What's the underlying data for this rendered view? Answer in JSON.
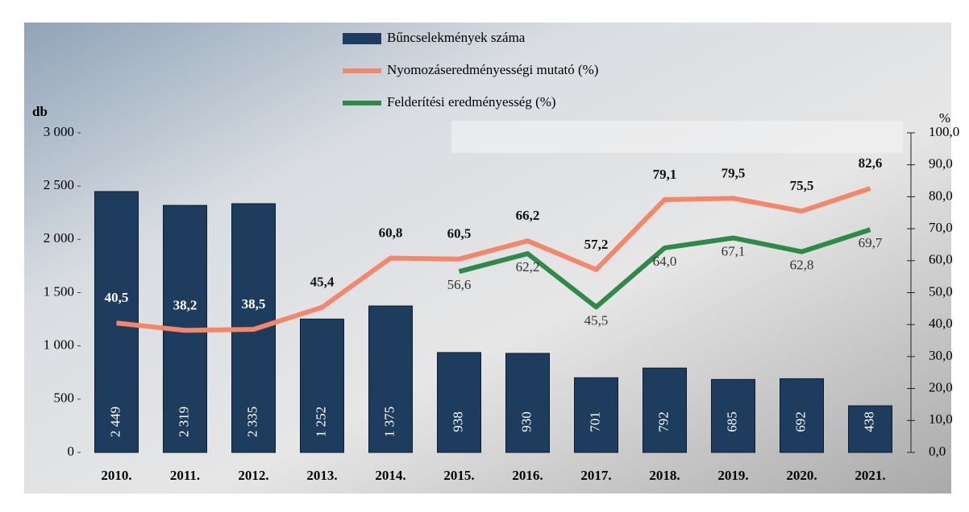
{
  "chart_data": {
    "type": "bar",
    "y_label": "db",
    "y2_label": "%",
    "categories": [
      "2010.",
      "2011.",
      "2012.",
      "2013.",
      "2014.",
      "2015.",
      "2016.",
      "2017.",
      "2018.",
      "2019.",
      "2020.",
      "2021."
    ],
    "series": [
      {
        "name": "Bűncselekmények száma",
        "type": "bar",
        "color": "#1d3c5e",
        "values": [
          2449,
          2319,
          2335,
          1252,
          1375,
          938,
          930,
          701,
          792,
          685,
          692,
          438
        ],
        "value_labels": [
          "2 449",
          "2 319",
          "2 335",
          "1 252",
          "1 375",
          "938",
          "930",
          "701",
          "792",
          "685",
          "692",
          "438"
        ]
      },
      {
        "name": "Nyomozáseredményességi mutató (%)",
        "type": "line",
        "axis": "y2",
        "color": "#f3876b",
        "values": [
          40.5,
          38.2,
          38.5,
          45.4,
          60.8,
          60.5,
          66.2,
          57.2,
          79.1,
          79.5,
          75.5,
          82.6
        ],
        "value_labels": [
          "40,5",
          "38,2",
          "38,5",
          "45,4",
          "60,8",
          "60,5",
          "66,2",
          "57,2",
          "79,1",
          "79,5",
          "75,5",
          "82,6"
        ]
      },
      {
        "name": "Felderítési eredményesség (%)",
        "type": "line",
        "axis": "y2",
        "color": "#2f8a4a",
        "values": [
          null,
          null,
          null,
          null,
          null,
          56.6,
          62.2,
          45.5,
          64.0,
          67.1,
          62.8,
          69.7
        ],
        "value_labels": [
          null,
          null,
          null,
          null,
          null,
          "56,6",
          "62,2",
          "45,5",
          "64,0",
          "67,1",
          "62,8",
          "69,7"
        ]
      }
    ],
    "ylim": [
      0,
      3000
    ],
    "yticks": [
      0,
      500,
      {
        "value": 1000,
        "label": "1 000"
      },
      {
        "value": 1500,
        "label": "1 500"
      },
      {
        "value": 2000,
        "label": "2 000"
      },
      {
        "value": 2500,
        "label": "2 500"
      },
      {
        "value": 3000,
        "label": "3 000"
      }
    ],
    "y2lim": [
      0,
      100
    ],
    "y2ticks": [
      {
        "value": 0,
        "label": "0,0"
      },
      {
        "value": 10,
        "label": "10,0"
      },
      {
        "value": 20,
        "label": "20,0"
      },
      {
        "value": 30,
        "label": "30,0"
      },
      {
        "value": 40,
        "label": "40,0"
      },
      {
        "value": 50,
        "label": "50,0"
      },
      {
        "value": 60,
        "label": "60,0"
      },
      {
        "value": 70,
        "label": "70,0"
      },
      {
        "value": 80,
        "label": "80,0"
      },
      {
        "value": 90,
        "label": "90,0"
      },
      {
        "value": 100,
        "label": "100,0"
      }
    ]
  }
}
